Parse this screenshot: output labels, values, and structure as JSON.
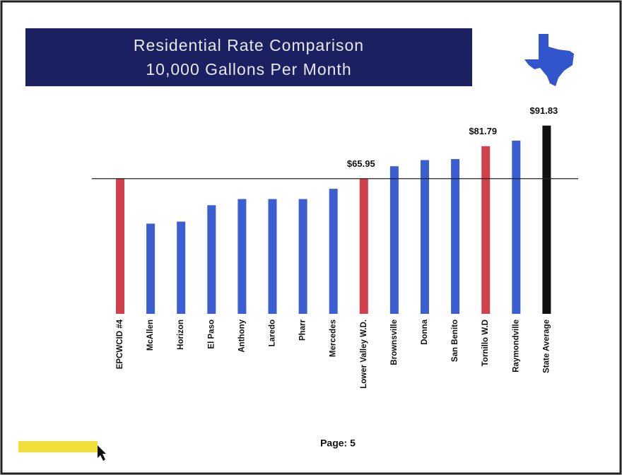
{
  "chart_data": {
    "type": "bar",
    "title": [
      "Residential Rate Comparison",
      "10,000 Gallons Per Month"
    ],
    "categories": [
      "EPCWCID #4",
      "McAllen",
      "Horizon",
      "El Paso",
      "Anthony",
      "Laredo",
      "Pharr",
      "Mercedes",
      "Lower Valley W.D.",
      "Brownsville",
      "Donna",
      "San Benito",
      "Tornillo W.D",
      "Raymondville",
      "State Average"
    ],
    "values": [
      66,
      44,
      45,
      53,
      56,
      56,
      56,
      61,
      65.95,
      72,
      75,
      75.5,
      81.79,
      84.5,
      91.83
    ],
    "value_labels": [
      null,
      null,
      null,
      null,
      null,
      null,
      null,
      null,
      "$65.95",
      null,
      null,
      null,
      "$81.79",
      null,
      "$91.83"
    ],
    "colors": [
      "#d2414b",
      "#3b5fd0",
      "#3b5fd0",
      "#3b5fd0",
      "#3b5fd0",
      "#3b5fd0",
      "#3b5fd0",
      "#3b5fd0",
      "#d2414b",
      "#3b5fd0",
      "#3b5fd0",
      "#3b5fd0",
      "#d2414b",
      "#3b5fd0",
      "#111111"
    ],
    "footer": "Page: 5"
  }
}
